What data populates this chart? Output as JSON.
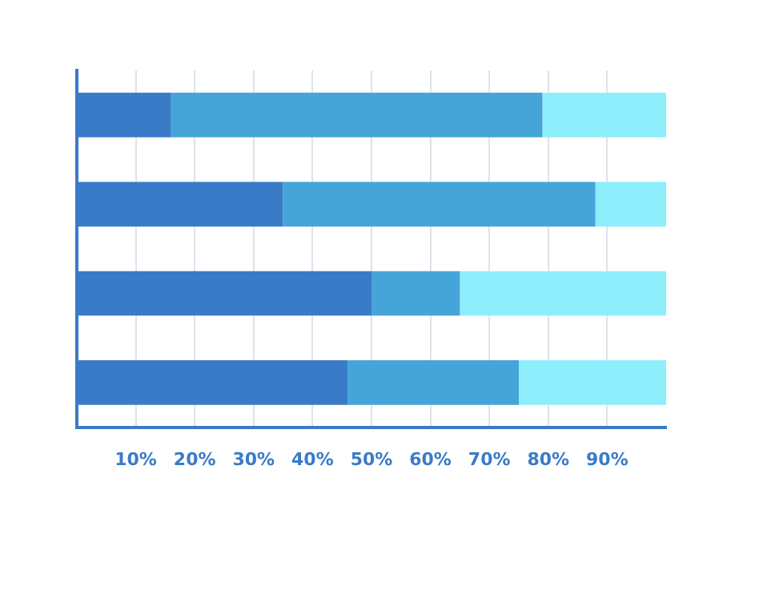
{
  "chart_data": {
    "type": "bar",
    "orientation": "horizontal",
    "stacked": true,
    "categories": [
      null,
      null,
      null,
      null
    ],
    "series": [
      {
        "color": "#3a7bc8",
        "values": [
          16,
          35,
          50,
          46
        ]
      },
      {
        "color": "#45a5d8",
        "values": [
          63,
          53,
          15,
          29
        ]
      },
      {
        "color": "#8eeefc",
        "values": [
          21,
          12,
          35,
          25
        ]
      }
    ],
    "xlim": [
      0,
      100
    ],
    "xticks": [
      {
        "value": 10,
        "label": "10%"
      },
      {
        "value": 20,
        "label": "20%"
      },
      {
        "value": 30,
        "label": "30%"
      },
      {
        "value": 40,
        "label": "40%"
      },
      {
        "value": 50,
        "label": "50%"
      },
      {
        "value": 60,
        "label": "60%"
      },
      {
        "value": 70,
        "label": "70%"
      },
      {
        "value": 80,
        "label": "80%"
      },
      {
        "value": 90,
        "label": "90%"
      }
    ],
    "grid": "x",
    "legend": false
  }
}
